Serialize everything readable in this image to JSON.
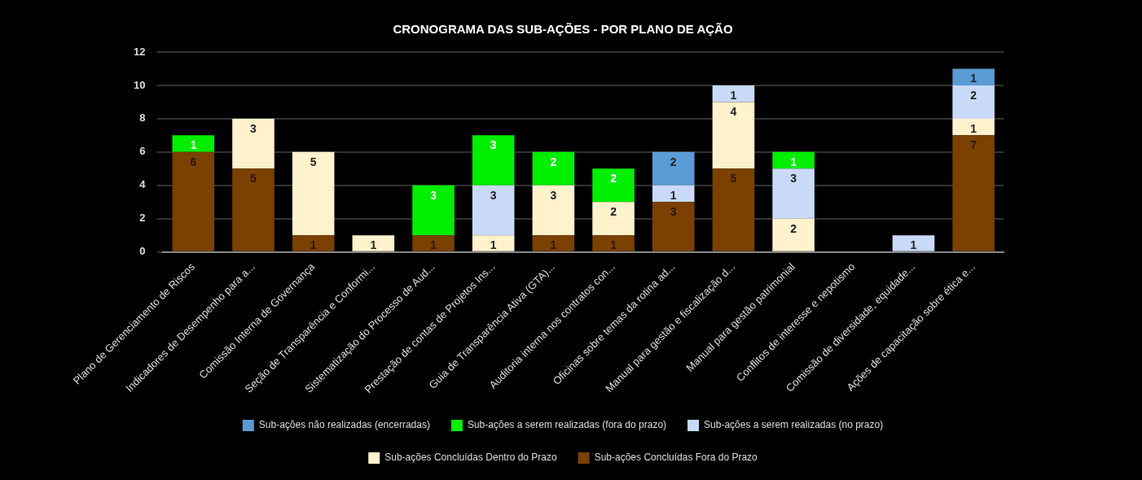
{
  "chart_data": {
    "type": "bar",
    "title": "CRONOGRAMA DAS SUB-AÇÕES - POR PLANO DE AÇÃO",
    "stacked": true,
    "data_labels": true,
    "grid": "y",
    "legend": "bottom",
    "categories": [
      "Plano de Gerenciamento de Riscos",
      "Indicadores de Desempenho para a...",
      "Comissão Interna de Governança",
      "Seção de Transparência e Conformi...",
      "Sistematização do Processo de Aud...",
      "Prestação de contas de Projetos Ins...",
      "Guia de Transparência Ativa (GTA)...",
      "Auditoria interna nos contratos con...",
      "Oficinas sobre temas da rotina ad...",
      "Manual para gestão e fiscalização d...",
      "Manual para gestão patrimonial",
      "Conflitos de interesse e nepotismo",
      "Comissão de diversidade, equidade...",
      "Ações de capacitação sobre ética e..."
    ],
    "ylim": [
      0,
      12
    ],
    "yticks": [
      0,
      2,
      4,
      6,
      8,
      10,
      12
    ],
    "series": [
      {
        "name": "Sub-ações Concluídas Fora do Prazo",
        "color": "#7a4100",
        "values": [
          6,
          5,
          1,
          null,
          1,
          null,
          1,
          1,
          3,
          5,
          null,
          null,
          null,
          7
        ]
      },
      {
        "name": "Sub-ações Concluídas Dentro do Prazo",
        "color": "#fff2cc",
        "values": [
          null,
          3,
          5,
          1,
          null,
          1,
          3,
          2,
          null,
          4,
          2,
          null,
          null,
          1
        ]
      },
      {
        "name": "Sub-ações a serem realizadas (no prazo)",
        "color": "#c9daf8",
        "values": [
          null,
          null,
          null,
          null,
          null,
          3,
          null,
          null,
          1,
          1,
          3,
          null,
          1,
          2
        ]
      },
      {
        "name": "Sub-ações a serem realizadas (fora do prazo)",
        "color": "#00ee00",
        "values": [
          1,
          null,
          null,
          null,
          3,
          3,
          2,
          2,
          null,
          null,
          1,
          null,
          null,
          null
        ]
      },
      {
        "name": "Sub-ações não realizadas (encerradas)",
        "color": "#5b9bd5",
        "values": [
          null,
          null,
          null,
          null,
          null,
          null,
          null,
          null,
          2,
          null,
          null,
          null,
          null,
          1
        ]
      }
    ]
  }
}
